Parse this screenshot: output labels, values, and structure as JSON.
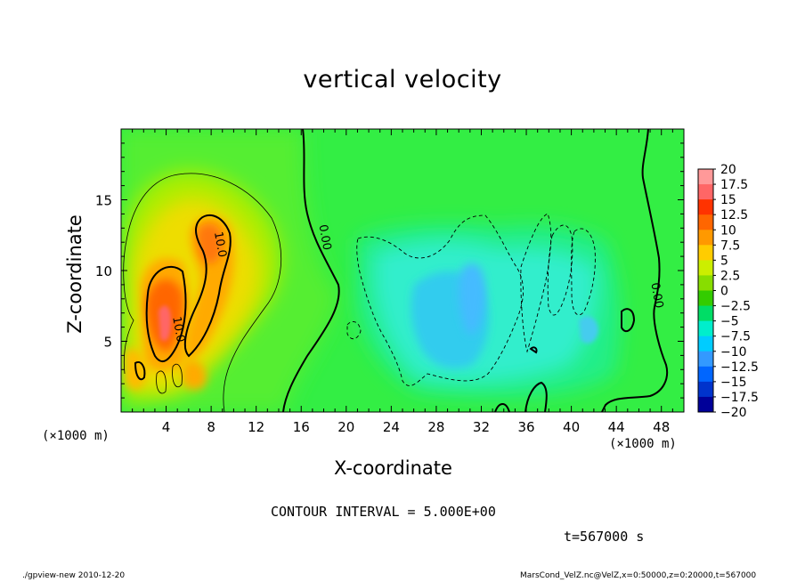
{
  "chart_data": {
    "type": "heatmap",
    "title": "vertical velocity",
    "xlabel": "X-coordinate",
    "ylabel": "Z-coordinate",
    "x_unit_label": "(×1000 m)",
    "x_ticks": [
      4,
      8,
      12,
      16,
      20,
      24,
      28,
      32,
      36,
      40,
      44,
      48
    ],
    "y_ticks": [
      5,
      10,
      15
    ],
    "xlim": [
      0,
      50
    ],
    "ylim": [
      0,
      20
    ],
    "colorbar": {
      "labels": [
        "20",
        "17.5",
        "15",
        "12.5",
        "10",
        "7.5",
        "5",
        "2.5",
        "0",
        "−2.5",
        "−5",
        "−7.5",
        "−10",
        "−12.5",
        "−15",
        "−17.5",
        "−20"
      ],
      "colors": [
        "#ff9999",
        "#ff6666",
        "#ff3300",
        "#ff6600",
        "#ff9900",
        "#ffcc00",
        "#ccee00",
        "#88dd00",
        "#33cc00",
        "#00dd66",
        "#00eecc",
        "#00ccff",
        "#3399ff",
        "#0066ff",
        "#0033cc",
        "#000099",
        "#6600cc"
      ]
    },
    "contour_labels": [
      {
        "text": "10.0",
        "x": 8.5,
        "z": 11.8
      },
      {
        "text": "10.0",
        "x": 4.8,
        "z": 5.8
      },
      {
        "text": "0.00",
        "x": 17.8,
        "z": 12.3
      },
      {
        "text": "0.00",
        "x": 47.3,
        "z": 8.2
      }
    ],
    "contour_interval": "CONTOUR INTERVAL = 5.000E+00",
    "time": "t=567000 s"
  },
  "footer": {
    "left": "./gpview-new 2010-12-20",
    "right": "MarsCond_VelZ.nc@VelZ,x=0:50000,z=0:20000,t=567000"
  }
}
